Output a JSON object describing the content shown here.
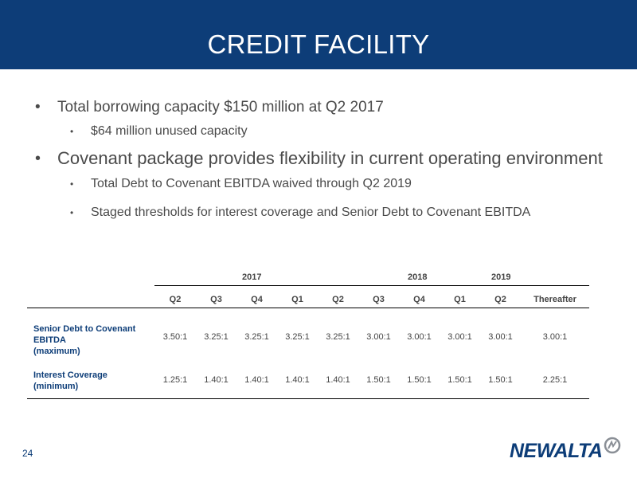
{
  "slide": {
    "title": "CREDIT FACILITY",
    "page_number": "24",
    "logo_text": "NEWALTA"
  },
  "bullets": [
    {
      "text": "Total borrowing capacity $150 million at Q2 2017",
      "sub": [
        "$64 million unused capacity"
      ]
    },
    {
      "text": "Covenant package provides flexibility in current operating environment",
      "sub": [
        "Total Debt to Covenant EBITDA waived through Q2 2019",
        "Staged thresholds for interest coverage and Senior Debt to Covenant EBITDA"
      ]
    }
  ],
  "table": {
    "years": [
      "2017",
      "2018",
      "2019"
    ],
    "quarters": [
      "Q2",
      "Q3",
      "Q4",
      "Q1",
      "Q2",
      "Q3",
      "Q4",
      "Q1",
      "Q2",
      "Thereafter"
    ],
    "rows": [
      {
        "label_line1": "Senior Debt to Covenant",
        "label_line2": "EBITDA",
        "label_line3": "(maximum)",
        "values": [
          "3.50:1",
          "3.25:1",
          "3.25:1",
          "3.25:1",
          "3.25:1",
          "3.00:1",
          "3.00:1",
          "3.00:1",
          "3.00:1",
          "3.00:1"
        ]
      },
      {
        "label_line1": "Interest Coverage",
        "label_line2": "(minimum)",
        "values": [
          "1.25:1",
          "1.40:1",
          "1.40:1",
          "1.40:1",
          "1.40:1",
          "1.50:1",
          "1.50:1",
          "1.50:1",
          "1.50:1",
          "2.25:1"
        ]
      }
    ]
  },
  "colors": {
    "brand_navy": "#0d3d78"
  }
}
